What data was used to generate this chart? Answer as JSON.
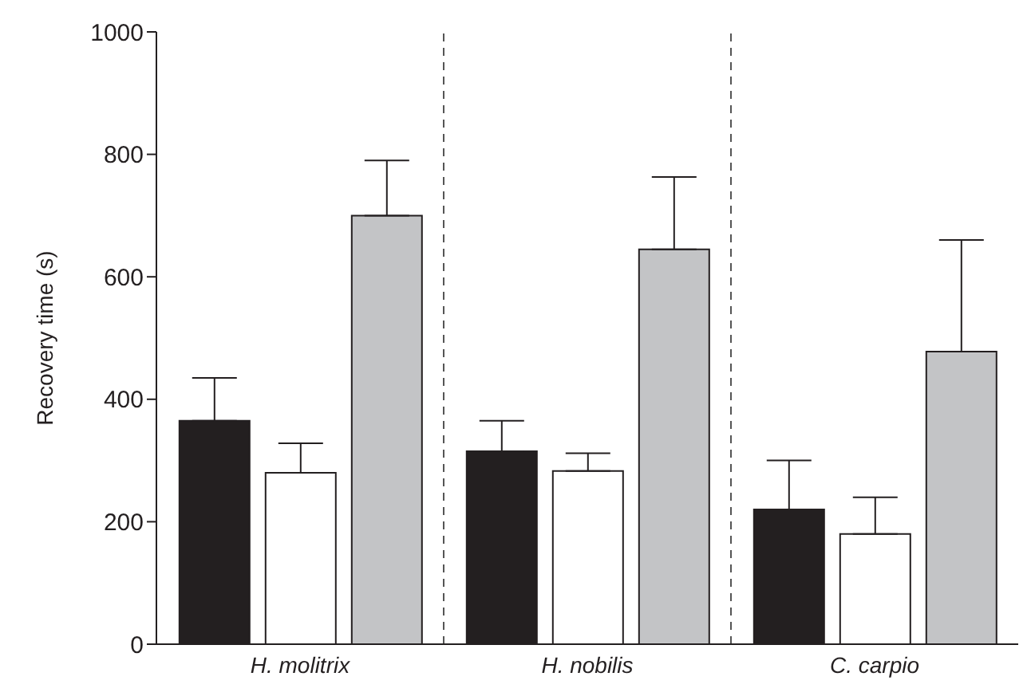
{
  "chart_data": {
    "type": "bar",
    "ylabel": "Recovery time (s)",
    "categories": [
      "H. molitrix",
      "H. nobilis",
      "C. carpio"
    ],
    "series": [
      {
        "color": "#231f20",
        "values": [
          365,
          315,
          220
        ],
        "errors": [
          [
            365,
            435
          ],
          [
            315,
            365
          ],
          [
            220,
            300
          ]
        ]
      },
      {
        "color": "#ffffff",
        "values": [
          280,
          283,
          180
        ],
        "errors": [
          [
            280,
            328
          ],
          [
            283,
            312
          ],
          [
            180,
            240
          ]
        ]
      },
      {
        "color": "#c3c4c6",
        "values": [
          700,
          645,
          478
        ],
        "errors": [
          [
            700,
            790
          ],
          [
            645,
            763
          ],
          [
            478,
            660
          ]
        ]
      }
    ],
    "ylim": [
      0,
      1000
    ],
    "yticks": [
      0,
      200,
      400,
      600,
      800,
      1000
    ],
    "grid": false,
    "legend": false
  }
}
